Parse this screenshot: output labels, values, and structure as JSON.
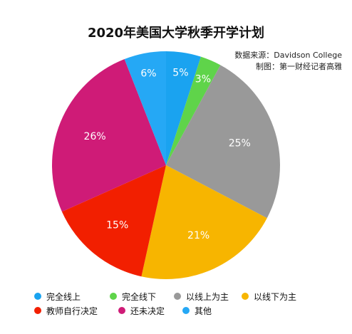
{
  "chart_data": {
    "type": "pie",
    "title": "2020年美国大学秋季开学计划",
    "source_lines": [
      "数据来源：Davidson College",
      "制图：第一财经记者高雅"
    ],
    "slices": [
      {
        "label": "完全线上",
        "value": 5,
        "display": "5%",
        "color": "#1aa3f0"
      },
      {
        "label": "完全线下",
        "value": 3,
        "display": "3%",
        "color": "#5fd44a"
      },
      {
        "label": "以线上为主",
        "value": 25,
        "display": "25%",
        "color": "#999999"
      },
      {
        "label": "以线下为主",
        "value": 21,
        "display": "21%",
        "color": "#f7b500"
      },
      {
        "label": "教师自行决定",
        "value": 15,
        "display": "15%",
        "color": "#f21f00"
      },
      {
        "label": "还未决定",
        "value": 26,
        "display": "26%",
        "color": "#cf1b77"
      },
      {
        "label": "其他",
        "value": 6,
        "display": "6%",
        "color": "#25a8f5"
      }
    ],
    "legend_position": "bottom"
  }
}
